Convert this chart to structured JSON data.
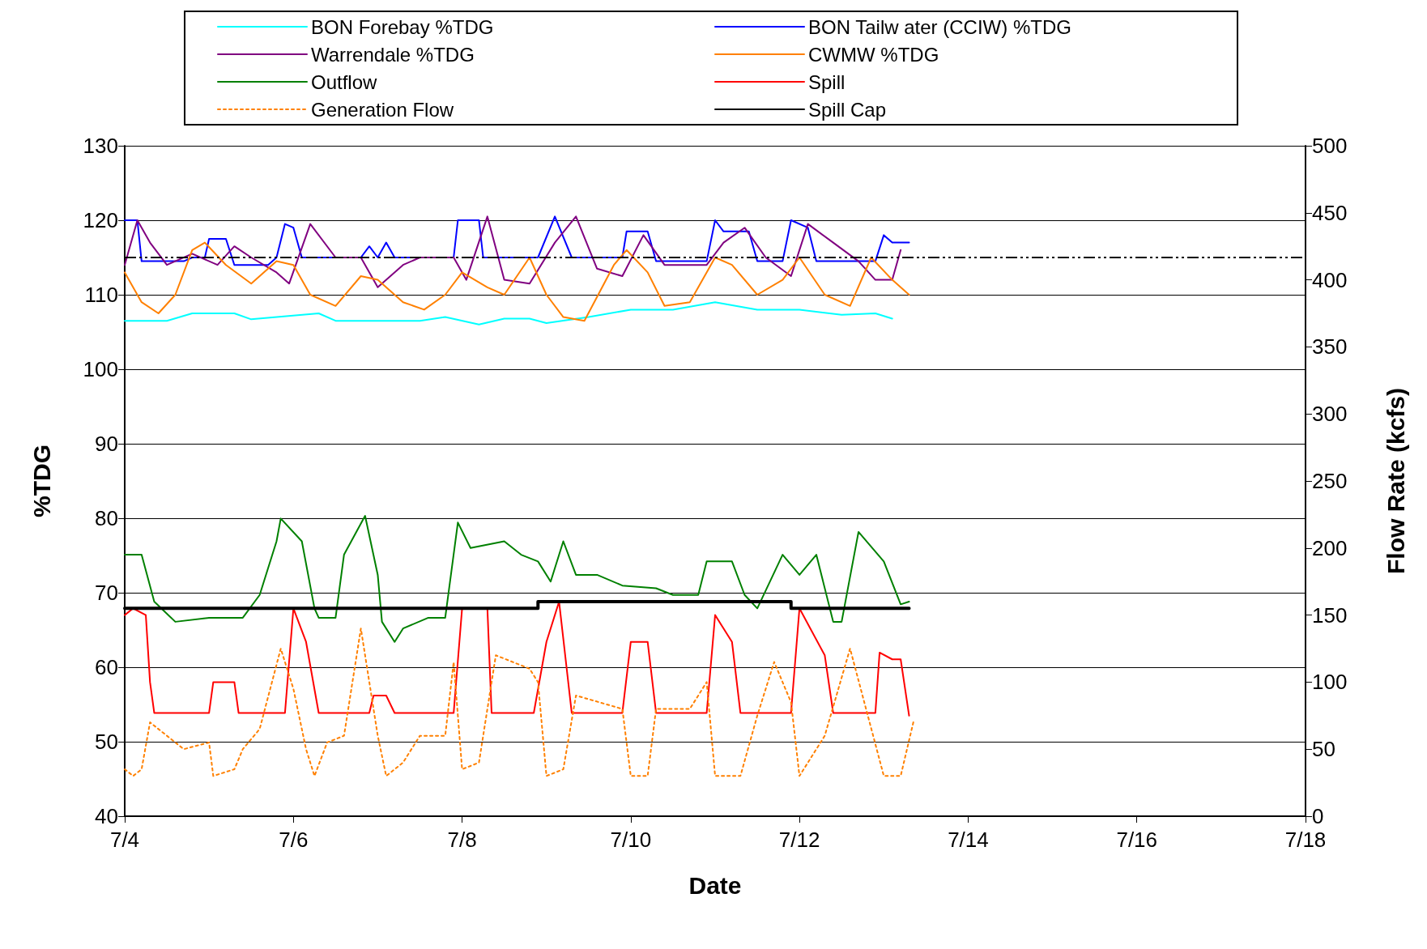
{
  "chart_data": {
    "type": "line",
    "xlabel": "Date",
    "ylabel": "%TDG",
    "y2label": "Flow Rate (kcfs)",
    "xlim": [
      "--07-04",
      "--07-18"
    ],
    "xticks": [
      {
        "value": "--07-04",
        "label": "7/4"
      },
      {
        "value": "--07-06",
        "label": "7/6"
      },
      {
        "value": "--07-08",
        "label": "7/8"
      },
      {
        "value": "--07-10",
        "label": "7/10"
      },
      {
        "value": "--07-12",
        "label": "7/12"
      },
      {
        "value": "--07-14",
        "label": "7/14"
      },
      {
        "value": "--07-16",
        "label": "7/16"
      },
      {
        "value": "--07-18",
        "label": "7/18"
      }
    ],
    "ylim": [
      40,
      130
    ],
    "yticks": [
      40,
      50,
      60,
      70,
      80,
      90,
      100,
      110,
      120,
      130
    ],
    "y2lim": [
      0,
      500
    ],
    "y2ticks": [
      0,
      50,
      100,
      150,
      200,
      250,
      300,
      350,
      400,
      450,
      500
    ],
    "grid": "y",
    "legend": "top",
    "marker": "none",
    "ref_lines": [
      {
        "axis": "y",
        "value": 115,
        "color": "#000000",
        "line_style": "dashed"
      }
    ],
    "series": [
      {
        "name": "BON Forebay %TDG",
        "color": "#00ffff",
        "x": [
          "--07-04T00:00",
          "--07-04T12:00",
          "--07-04T19:12",
          "--07-05T07:12",
          "--07-05T12:00",
          "--07-06T07:12",
          "--07-06T12:00",
          "--07-07T12:00",
          "--07-07T19:12",
          "--07-08T04:48",
          "--07-08T12:00",
          "--07-08T19:12",
          "--07-09T00:00",
          "--07-09T12:00",
          "--07-10T00:00",
          "--07-10T12:00",
          "--07-11T00:00",
          "--07-11T12:00",
          "--07-12T00:00",
          "--07-12T12:00",
          "--07-12T21:36",
          "--07-13T02:24"
        ],
        "values": [
          106.5,
          106.5,
          107.5,
          107.5,
          106.7,
          107.5,
          106.5,
          106.5,
          107,
          106,
          106.8,
          106.8,
          106.2,
          107,
          108,
          108,
          109,
          108,
          108,
          107.3,
          107.5,
          106.8
        ]
      },
      {
        "name": "BON Tailw ater (CCIW) %TDG",
        "color": "#0000ff",
        "x": [
          "--07-04T00:00",
          "--07-04T03:36",
          "--07-04T04:48",
          "--07-04T16:48",
          "--07-04T19:12",
          "--07-04T22:48",
          "--07-05T00:00",
          "--07-05T04:48",
          "--07-05T07:12",
          "--07-05T16:48",
          "--07-05T19:12",
          "--07-05T21:36",
          "--07-06T00:00",
          "--07-06T02:24",
          "--07-06T19:12",
          "--07-06T21:36",
          "--07-07T00:00",
          "--07-07T02:24",
          "--07-07T04:48",
          "--07-07T21:36",
          "--07-07T22:48",
          "--07-08T04:48",
          "--07-08T06:00",
          "--07-08T21:36",
          "--07-09T02:24",
          "--07-09T07:12",
          "--07-09T21:36",
          "--07-09T22:48",
          "--07-10T04:48",
          "--07-10T07:12",
          "--07-10T21:36",
          "--07-11T00:00",
          "--07-11T02:24",
          "--07-11T09:36",
          "--07-11T12:00",
          "--07-11T19:12",
          "--07-11T21:36",
          "--07-12T02:24",
          "--07-12T04:48",
          "--07-12T21:36",
          "--07-13T00:00",
          "--07-13T02:24",
          "--07-13T07:12"
        ],
        "values": [
          120,
          120,
          114.5,
          114.5,
          115,
          115,
          117.5,
          117.5,
          114,
          114,
          115,
          119.5,
          119,
          115,
          115,
          116.5,
          115,
          117,
          115,
          115,
          120,
          120,
          115,
          115,
          120.5,
          115,
          115,
          118.5,
          118.5,
          114.5,
          114.5,
          120,
          118.5,
          118.5,
          114.5,
          114.5,
          120,
          119,
          114.5,
          114.5,
          118,
          117,
          117
        ]
      },
      {
        "name": "Warrendale %TDG",
        "color": "#800080",
        "x": [
          "--07-04T00:00",
          "--07-04T03:36",
          "--07-04T07:12",
          "--07-04T12:00",
          "--07-04T19:12",
          "--07-05T02:24",
          "--07-05T07:12",
          "--07-05T12:00",
          "--07-05T19:12",
          "--07-05T22:48",
          "--07-06T04:48",
          "--07-06T12:00",
          "--07-06T19:12",
          "--07-07T00:00",
          "--07-07T07:12",
          "--07-07T12:00",
          "--07-07T21:36",
          "--07-08T01:12",
          "--07-08T07:12",
          "--07-08T12:00",
          "--07-08T19:12",
          "--07-09T02:24",
          "--07-09T08:24",
          "--07-09T14:24",
          "--07-09T21:36",
          "--07-10T03:36",
          "--07-10T09:36",
          "--07-10T16:48",
          "--07-10T21:36",
          "--07-11T02:24",
          "--07-11T08:24",
          "--07-11T14:24",
          "--07-11T21:36",
          "--07-12T02:24",
          "--07-12T09:36",
          "--07-12T16:48",
          "--07-12T21:36",
          "--07-13T02:24",
          "--07-13T04:48"
        ],
        "values": [
          114,
          120,
          117,
          114,
          115.5,
          114,
          116.5,
          115,
          113,
          111.5,
          119.5,
          115,
          115,
          111,
          114,
          115,
          115,
          112,
          120.5,
          112,
          111.5,
          117,
          120.5,
          113.5,
          112.5,
          118,
          114,
          114,
          114,
          117,
          119,
          115,
          112.5,
          119.5,
          117,
          114.5,
          112,
          112,
          116
        ]
      },
      {
        "name": "CWMW %TDG",
        "color": "#ff8000",
        "x": [
          "--07-04T00:00",
          "--07-04T04:48",
          "--07-04T09:36",
          "--07-04T14:24",
          "--07-04T19:12",
          "--07-04T22:48",
          "--07-05T04:48",
          "--07-05T12:00",
          "--07-05T19:12",
          "--07-06T00:00",
          "--07-06T04:48",
          "--07-06T12:00",
          "--07-06T19:12",
          "--07-07T00:00",
          "--07-07T07:12",
          "--07-07T13:12",
          "--07-07T19:12",
          "--07-08T00:00",
          "--07-08T07:12",
          "--07-08T12:00",
          "--07-08T19:12",
          "--07-09T00:00",
          "--07-09T04:48",
          "--07-09T10:48",
          "--07-09T19:12",
          "--07-09T22:48",
          "--07-10T04:48",
          "--07-10T09:36",
          "--07-10T16:48",
          "--07-11T00:00",
          "--07-11T04:48",
          "--07-11T12:00",
          "--07-11T19:12",
          "--07-12T00:00",
          "--07-12T07:12",
          "--07-12T14:24",
          "--07-12T20:24",
          "--07-13T02:24",
          "--07-13T07:12"
        ],
        "values": [
          113,
          109,
          107.5,
          110,
          116,
          117,
          114,
          111.5,
          114.5,
          114,
          110,
          108.5,
          112.5,
          112,
          109,
          108,
          110,
          113,
          111,
          110,
          115,
          110,
          107,
          106.5,
          114,
          116,
          113,
          108.5,
          109,
          115,
          114,
          110,
          112,
          115,
          110,
          108.5,
          115,
          112,
          110
        ]
      },
      {
        "name": "Outflow",
        "color": "#008000",
        "axis": "y2",
        "x": [
          "--07-04T00:00",
          "--07-04T04:48",
          "--07-04T08:24",
          "--07-04T14:24",
          "--07-05T00:00",
          "--07-05T09:36",
          "--07-05T14:24",
          "--07-05T19:12",
          "--07-05T20:24",
          "--07-06T02:24",
          "--07-06T06:00",
          "--07-06T07:12",
          "--07-06T12:00",
          "--07-06T14:24",
          "--07-06T20:24",
          "--07-07T00:00",
          "--07-07T01:12",
          "--07-07T04:48",
          "--07-07T07:12",
          "--07-07T14:24",
          "--07-07T19:12",
          "--07-07T22:48",
          "--07-08T02:24",
          "--07-08T12:00",
          "--07-08T16:48",
          "--07-08T21:36",
          "--07-09T01:12",
          "--07-09T04:48",
          "--07-09T08:24",
          "--07-09T14:24",
          "--07-09T21:36",
          "--07-10T07:12",
          "--07-10T12:00",
          "--07-10T19:12",
          "--07-10T21:36",
          "--07-11T04:48",
          "--07-11T08:24",
          "--07-11T12:00",
          "--07-11T19:12",
          "--07-12T00:00",
          "--07-12T04:48",
          "--07-12T09:36",
          "--07-12T12:00",
          "--07-12T16:48",
          "--07-13T00:00",
          "--07-13T04:48",
          "--07-13T07:12"
        ],
        "values": [
          195,
          195,
          160,
          145,
          148,
          148,
          165,
          205,
          222,
          205,
          155,
          148,
          148,
          195,
          224,
          180,
          145,
          130,
          140,
          148,
          148,
          219,
          200,
          205,
          195,
          190,
          175,
          205,
          180,
          180,
          172,
          170,
          165,
          165,
          190,
          190,
          165,
          155,
          195,
          180,
          195,
          145,
          145,
          212,
          190,
          158,
          160
        ]
      },
      {
        "name": "Spill",
        "color": "#ff0000",
        "axis": "y2",
        "x": [
          "--07-04T00:00",
          "--07-04T02:24",
          "--07-04T06:00",
          "--07-04T07:12",
          "--07-04T08:24",
          "--07-05T00:00",
          "--07-05T01:12",
          "--07-05T07:12",
          "--07-05T08:24",
          "--07-05T21:36",
          "--07-06T00:00",
          "--07-06T03:36",
          "--07-06T07:12",
          "--07-06T21:36",
          "--07-06T22:48",
          "--07-07T02:24",
          "--07-07T04:48",
          "--07-07T21:36",
          "--07-08T00:00",
          "--07-08T07:12",
          "--07-08T08:24",
          "--07-08T20:24",
          "--07-09T00:00",
          "--07-09T03:36",
          "--07-09T07:12",
          "--07-09T21:36",
          "--07-10T00:00",
          "--07-10T04:48",
          "--07-10T07:12",
          "--07-10T21:36",
          "--07-11T00:00",
          "--07-11T04:48",
          "--07-11T07:12",
          "--07-11T21:36",
          "--07-12T00:00",
          "--07-12T07:12",
          "--07-12T09:36",
          "--07-12T21:36",
          "--07-12T22:48",
          "--07-13T02:24",
          "--07-13T04:48",
          "--07-13T07:12"
        ],
        "values": [
          150,
          155,
          150,
          100,
          77,
          77,
          100,
          100,
          77,
          77,
          155,
          130,
          77,
          77,
          90,
          90,
          77,
          77,
          155,
          155,
          77,
          77,
          130,
          160,
          77,
          77,
          130,
          130,
          77,
          77,
          150,
          130,
          77,
          77,
          155,
          120,
          77,
          77,
          122,
          117,
          117,
          75
        ]
      },
      {
        "name": "Generation Flow",
        "color": "#ff8000",
        "axis": "y2",
        "line_style": "dotted",
        "x": [
          "--07-04T00:00",
          "--07-04T02:24",
          "--07-04T04:48",
          "--07-04T07:12",
          "--07-04T12:00",
          "--07-04T16:48",
          "--07-05T00:00",
          "--07-05T01:12",
          "--07-05T07:12",
          "--07-05T09:36",
          "--07-05T14:24",
          "--07-05T20:24",
          "--07-06T00:00",
          "--07-06T03:36",
          "--07-06T06:00",
          "--07-06T09:36",
          "--07-06T14:24",
          "--07-06T19:12",
          "--07-07T00:00",
          "--07-07T02:24",
          "--07-07T07:12",
          "--07-07T12:00",
          "--07-07T19:12",
          "--07-07T21:36",
          "--07-08T00:00",
          "--07-08T04:48",
          "--07-08T09:36",
          "--07-08T19:12",
          "--07-08T21:36",
          "--07-09T00:00",
          "--07-09T04:48",
          "--07-09T08:24",
          "--07-09T21:36",
          "--07-10T00:00",
          "--07-10T04:48",
          "--07-10T07:12",
          "--07-10T16:48",
          "--07-10T21:36",
          "--07-11T00:00",
          "--07-11T07:12",
          "--07-11T12:00",
          "--07-11T16:48",
          "--07-11T21:36",
          "--07-12T00:00",
          "--07-12T07:12",
          "--07-12T14:24",
          "--07-13T00:00",
          "--07-13T04:48",
          "--07-13T08:24"
        ],
        "values": [
          35,
          30,
          35,
          70,
          60,
          50,
          55,
          30,
          35,
          50,
          65,
          125,
          95,
          50,
          30,
          55,
          60,
          140,
          60,
          30,
          40,
          60,
          60,
          115,
          35,
          40,
          120,
          110,
          100,
          30,
          35,
          90,
          80,
          30,
          30,
          80,
          80,
          100,
          30,
          30,
          75,
          115,
          85,
          30,
          60,
          125,
          30,
          30,
          70
        ]
      },
      {
        "name": "Spill Cap",
        "color": "#000000",
        "axis": "y2",
        "x": [
          "--07-04T00:00",
          "--07-08T21:36",
          "--07-08T21:36",
          "--07-11T21:36",
          "--07-11T21:36",
          "--07-13T07:12"
        ],
        "values": [
          155,
          155,
          160,
          160,
          155,
          155
        ]
      }
    ]
  }
}
